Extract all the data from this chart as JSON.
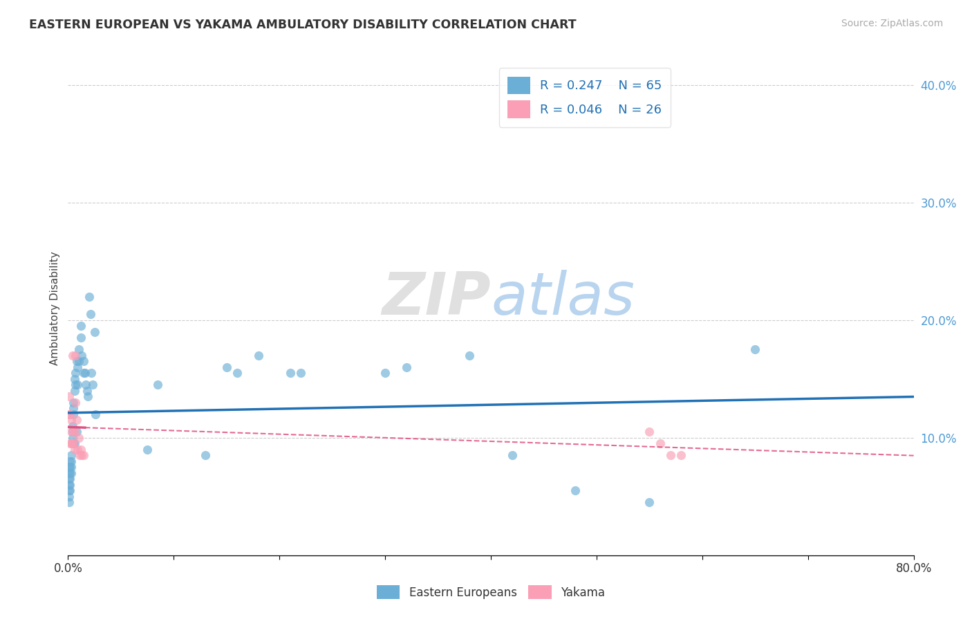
{
  "title": "EASTERN EUROPEAN VS YAKAMA AMBULATORY DISABILITY CORRELATION CHART",
  "source": "Source: ZipAtlas.com",
  "ylabel": "Ambulatory Disability",
  "xlim": [
    0.0,
    0.8
  ],
  "ylim": [
    0.0,
    0.42
  ],
  "background_color": "#ffffff",
  "blue_color": "#6baed6",
  "pink_color": "#fa9fb5",
  "blue_line_color": "#2171b5",
  "pink_line_color": "#e05080",
  "legend_r1": "R = 0.247",
  "legend_n1": "N = 65",
  "legend_r2": "R = 0.046",
  "legend_n2": "N = 26",
  "ee_x": [
    0.001,
    0.001,
    0.001,
    0.001,
    0.001,
    0.001,
    0.001,
    0.002,
    0.002,
    0.002,
    0.002,
    0.002,
    0.002,
    0.003,
    0.003,
    0.003,
    0.003,
    0.004,
    0.004,
    0.004,
    0.005,
    0.005,
    0.005,
    0.005,
    0.006,
    0.006,
    0.006,
    0.007,
    0.007,
    0.008,
    0.008,
    0.009,
    0.009,
    0.01,
    0.01,
    0.012,
    0.012,
    0.013,
    0.015,
    0.015,
    0.016,
    0.017,
    0.018,
    0.019,
    0.02,
    0.021,
    0.022,
    0.023,
    0.025,
    0.026,
    0.075,
    0.085,
    0.13,
    0.15,
    0.16,
    0.18,
    0.21,
    0.22,
    0.3,
    0.32,
    0.38,
    0.42,
    0.48,
    0.55,
    0.65
  ],
  "ee_y": [
    0.075,
    0.07,
    0.065,
    0.06,
    0.055,
    0.05,
    0.045,
    0.08,
    0.075,
    0.07,
    0.065,
    0.06,
    0.055,
    0.085,
    0.08,
    0.075,
    0.07,
    0.11,
    0.105,
    0.1,
    0.13,
    0.125,
    0.12,
    0.095,
    0.15,
    0.14,
    0.095,
    0.155,
    0.145,
    0.165,
    0.105,
    0.16,
    0.145,
    0.175,
    0.165,
    0.195,
    0.185,
    0.17,
    0.165,
    0.155,
    0.155,
    0.145,
    0.14,
    0.135,
    0.22,
    0.205,
    0.155,
    0.145,
    0.19,
    0.12,
    0.09,
    0.145,
    0.085,
    0.16,
    0.155,
    0.17,
    0.155,
    0.155,
    0.155,
    0.16,
    0.17,
    0.085,
    0.055,
    0.045,
    0.175
  ],
  "ya_x": [
    0.001,
    0.001,
    0.002,
    0.002,
    0.003,
    0.003,
    0.003,
    0.004,
    0.004,
    0.005,
    0.005,
    0.006,
    0.006,
    0.007,
    0.007,
    0.008,
    0.009,
    0.01,
    0.011,
    0.012,
    0.013,
    0.015,
    0.55,
    0.56,
    0.57,
    0.58
  ],
  "ya_y": [
    0.135,
    0.12,
    0.12,
    0.095,
    0.115,
    0.105,
    0.095,
    0.095,
    0.17,
    0.105,
    0.095,
    0.09,
    0.105,
    0.17,
    0.13,
    0.115,
    0.09,
    0.1,
    0.085,
    0.09,
    0.085,
    0.085,
    0.105,
    0.095,
    0.085,
    0.085
  ]
}
